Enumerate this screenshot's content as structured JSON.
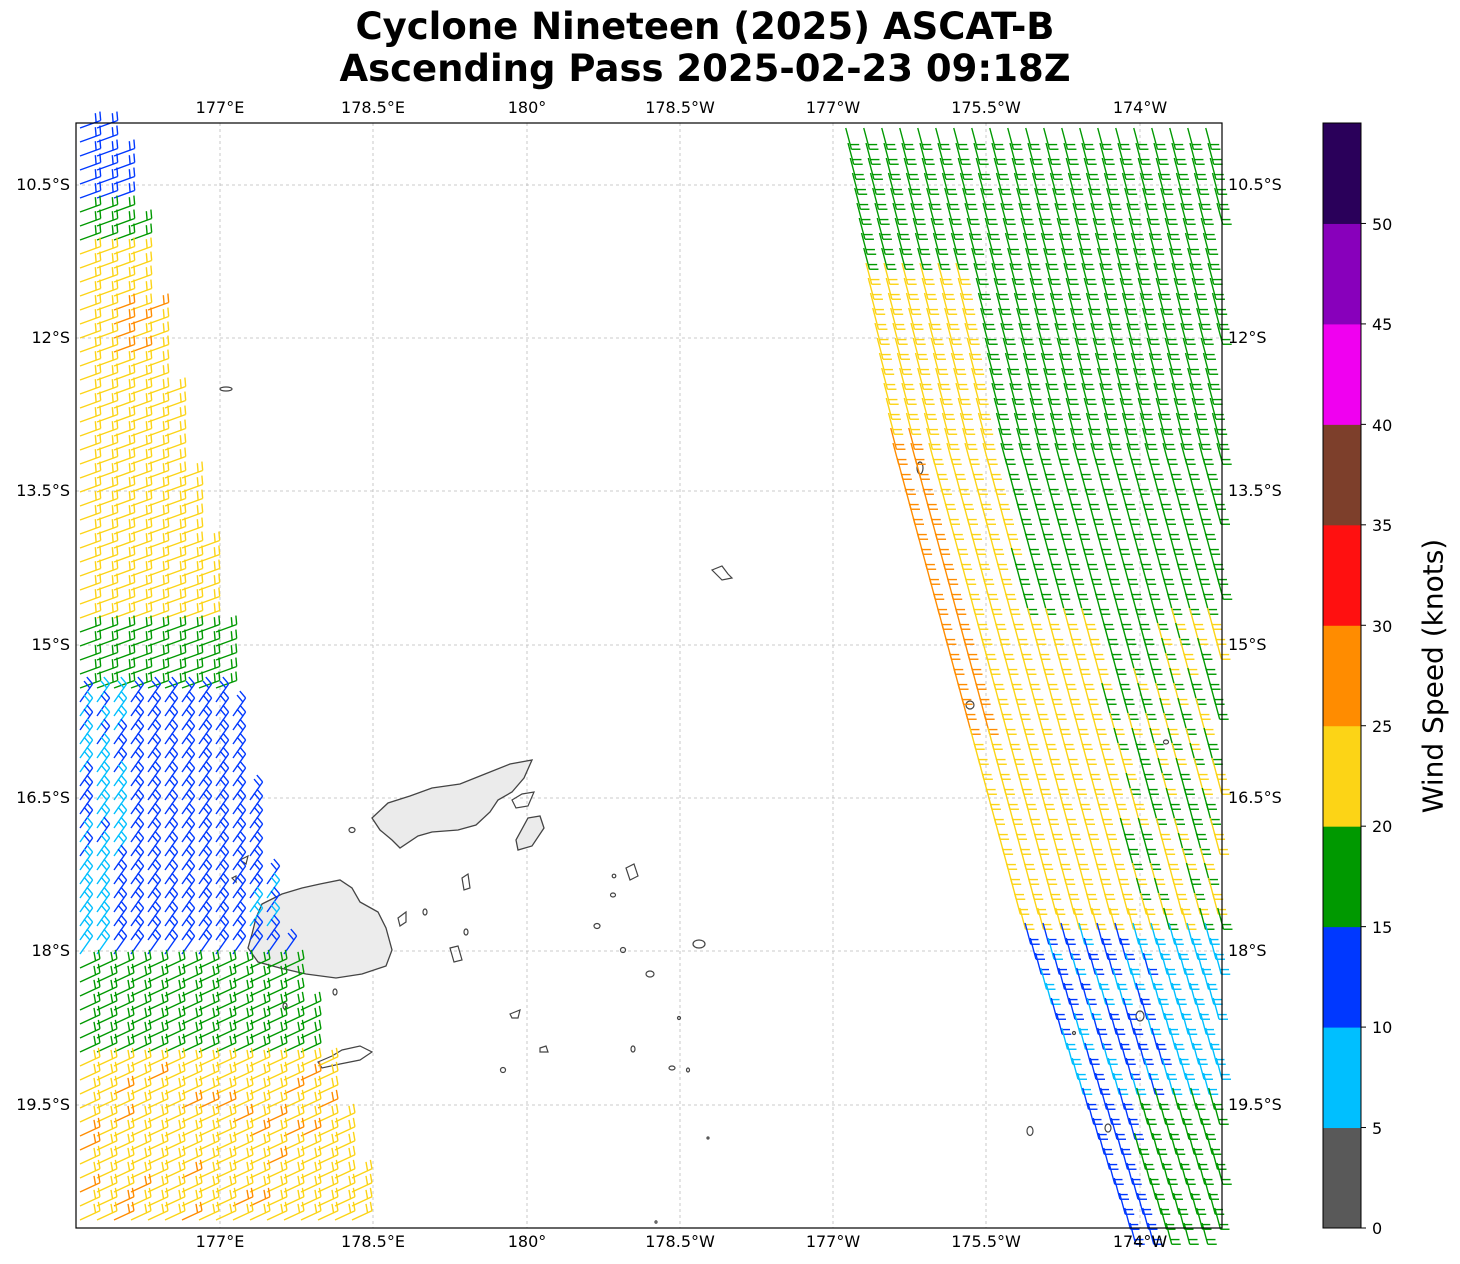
{
  "title": {
    "line1": "Cyclone Nineteen (2025) ASCAT-B",
    "line2": "Ascending Pass 2025-02-23 09:18Z"
  },
  "axes": {
    "lon_ticks": [
      "177°E",
      "178.5°E",
      "180°",
      "178.5°W",
      "177°W",
      "175.5°W",
      "174°W"
    ],
    "lat_ticks": [
      "10.5°S",
      "12°S",
      "13.5°S",
      "15°S",
      "16.5°S",
      "18°S",
      "19.5°S"
    ],
    "lon_range": [
      175.6,
      186.8
    ],
    "lat_range": [
      -9.9,
      -20.7
    ],
    "grid": true
  },
  "colorbar": {
    "label": "Wind Speed (knots)",
    "ticks": [
      "0",
      "5",
      "10",
      "15",
      "20",
      "25",
      "30",
      "35",
      "40",
      "45",
      "50"
    ],
    "bins": [
      {
        "min": 0,
        "max": 5,
        "color": "#595959"
      },
      {
        "min": 5,
        "max": 10,
        "color": "#00bfff"
      },
      {
        "min": 10,
        "max": 15,
        "color": "#0038ff"
      },
      {
        "min": 15,
        "max": 20,
        "color": "#009900"
      },
      {
        "min": 20,
        "max": 25,
        "color": "#fcd416"
      },
      {
        "min": 25,
        "max": 30,
        "color": "#ff8c00"
      },
      {
        "min": 30,
        "max": 35,
        "color": "#ff1010"
      },
      {
        "min": 35,
        "max": 40,
        "color": "#7d3f2b"
      },
      {
        "min": 40,
        "max": 45,
        "color": "#f000f0"
      },
      {
        "min": 45,
        "max": 50,
        "color": "#8800bb"
      },
      {
        "min": 50,
        "max": 55,
        "color": "#2a005a"
      }
    ]
  },
  "colors": {
    "grid": "#bbbbbb",
    "coast": "#444444",
    "land_fill": "#e8e8e8"
  }
}
